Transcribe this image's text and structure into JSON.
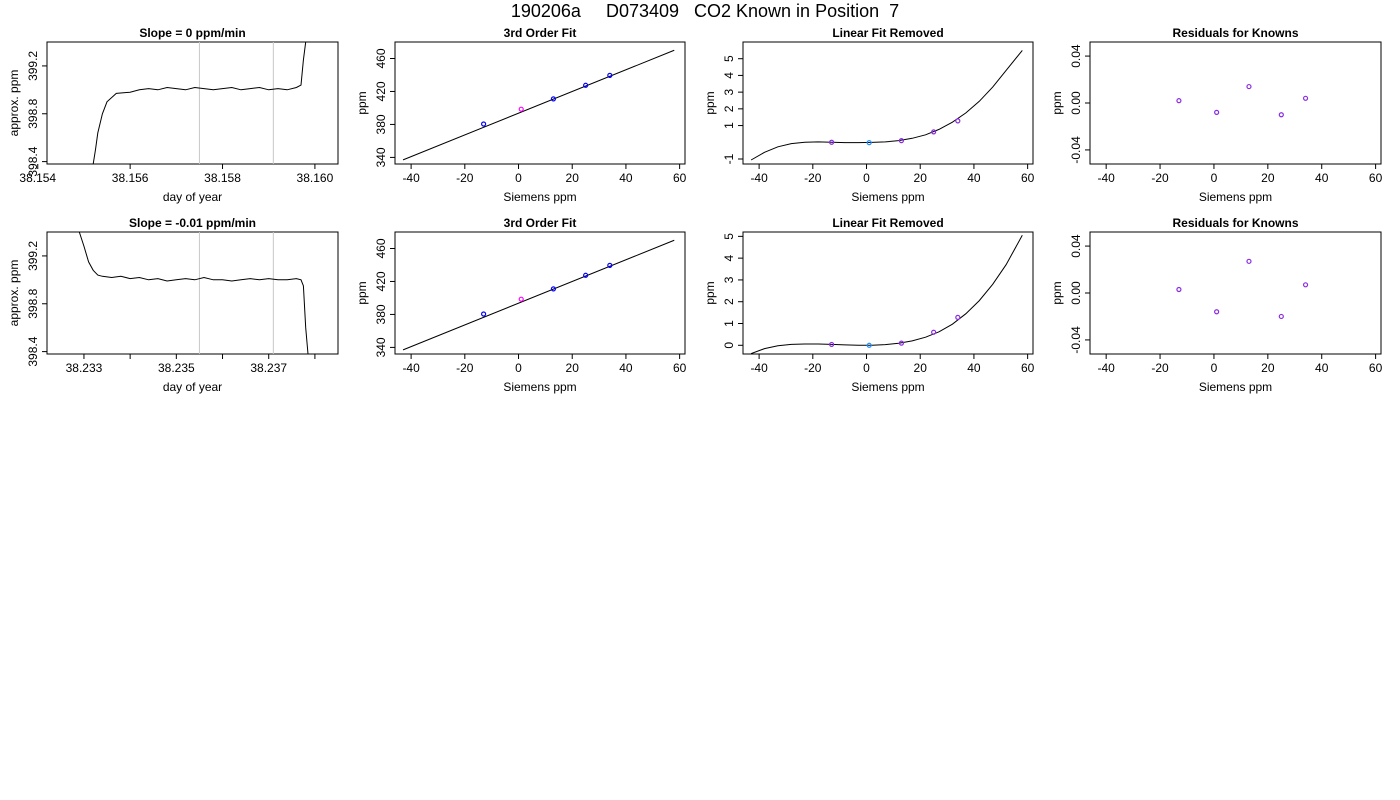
{
  "header": {
    "title": "190206a     D073409   CO2 Known in Position  7"
  },
  "colors": {
    "axis": "#000000",
    "line": "#000000",
    "vline": "#c8c8c8",
    "point_blue": "#0000ff",
    "point_purple": "#8a2be2",
    "point_magenta": "#ff00ff",
    "point_cyan": "#1e90ff"
  },
  "chart_data": [
    {
      "type": "line",
      "title": "Slope =  0  ppm/min",
      "xlabel": "day of year",
      "ylabel": "approx. ppm",
      "xlim": [
        38.1542,
        38.1605
      ],
      "ylim": [
        398.38,
        399.4
      ],
      "xticks": [
        38.154,
        38.156,
        38.158,
        38.16
      ],
      "xtick_labels": [
        "38.154",
        "38.156",
        "38.158",
        "38.160"
      ],
      "yticks": [
        398.4,
        398.8,
        399.2
      ],
      "ytick_labels": [
        "398.4",
        "398.8",
        "399.2"
      ],
      "vlines": [
        38.1575,
        38.1591
      ],
      "x": [
        38.1552,
        38.15525,
        38.1553,
        38.1554,
        38.1555,
        38.1557,
        38.156,
        38.1562,
        38.1564,
        38.1566,
        38.1568,
        38.157,
        38.1572,
        38.1574,
        38.1576,
        38.1578,
        38.158,
        38.1582,
        38.1584,
        38.1586,
        38.1588,
        38.159,
        38.1592,
        38.1594,
        38.1596,
        38.1597,
        38.15975,
        38.1598,
        38.15985
      ],
      "y": [
        398.38,
        398.5,
        398.64,
        398.8,
        398.9,
        398.97,
        398.98,
        399.0,
        399.01,
        399.0,
        399.02,
        399.01,
        399.0,
        399.02,
        399.01,
        399.0,
        399.01,
        399.02,
        399.0,
        399.01,
        399.02,
        399.0,
        399.01,
        399.0,
        399.02,
        399.04,
        399.25,
        399.4,
        399.4
      ]
    },
    {
      "type": "scatter",
      "title": "3rd Order Fit",
      "xlabel": "Siemens ppm",
      "ylabel": "ppm",
      "xlim": [
        -46,
        62
      ],
      "ylim": [
        332,
        480
      ],
      "xticks": [
        -40,
        -20,
        0,
        20,
        40,
        60
      ],
      "xtick_labels": [
        "-40",
        "-20",
        "0",
        "20",
        "40",
        "60"
      ],
      "yticks": [
        340,
        380,
        420,
        460
      ],
      "ytick_labels": [
        "340",
        "380",
        "420",
        "460"
      ],
      "line": {
        "x": [
          -43,
          58
        ],
        "y": [
          337,
          470
        ]
      },
      "points": {
        "x": [
          -13,
          1,
          13,
          25,
          34
        ],
        "y": [
          380.5,
          398.5,
          411,
          427.5,
          439.5
        ],
        "colors": [
          "point_blue",
          "point_magenta",
          "point_blue",
          "point_blue",
          "point_blue"
        ]
      }
    },
    {
      "type": "scatter",
      "title": "Linear Fit Removed",
      "xlabel": "Siemens ppm",
      "ylabel": "ppm",
      "xlim": [
        -46,
        62
      ],
      "ylim": [
        -1.3,
        6.0
      ],
      "xticks": [
        -40,
        -20,
        0,
        20,
        40,
        60
      ],
      "xtick_labels": [
        "-40",
        "-20",
        "0",
        "20",
        "40",
        "60"
      ],
      "yticks": [
        -1,
        1,
        2,
        3,
        4,
        5
      ],
      "ytick_labels": [
        "-1",
        "1",
        "2",
        "3",
        "4",
        "5"
      ],
      "curve": {
        "x": [
          -43,
          -38,
          -33,
          -28,
          -23,
          -18,
          -13,
          -8,
          -3,
          2,
          7,
          12,
          17,
          22,
          27,
          32,
          37,
          42,
          47,
          52,
          58
        ],
        "y": [
          -1.06,
          -0.6,
          -0.27,
          -0.08,
          0.0,
          0.02,
          0.0,
          -0.02,
          -0.02,
          -0.01,
          0.02,
          0.1,
          0.24,
          0.45,
          0.77,
          1.2,
          1.76,
          2.45,
          3.3,
          4.3,
          5.5
        ]
      },
      "points": {
        "x": [
          -13,
          1,
          13,
          25,
          34
        ],
        "y": [
          0.0,
          -0.02,
          0.1,
          0.62,
          1.28
        ],
        "colors": [
          "point_purple",
          "point_cyan",
          "point_purple",
          "point_purple",
          "point_purple"
        ]
      }
    },
    {
      "type": "scatter",
      "title": "Residuals for Knowns",
      "xlabel": "Siemens ppm",
      "ylabel": "ppm",
      "xlim": [
        -46,
        62
      ],
      "ylim": [
        -0.052,
        0.052
      ],
      "xticks": [
        -40,
        -20,
        0,
        20,
        40,
        60
      ],
      "xtick_labels": [
        "-40",
        "-20",
        "0",
        "20",
        "40",
        "60"
      ],
      "yticks": [
        -0.04,
        0.0,
        0.04
      ],
      "ytick_labels": [
        "-0.04",
        "0.00",
        "0.04"
      ],
      "points": {
        "x": [
          -13,
          1,
          13,
          25,
          34
        ],
        "y": [
          0.002,
          -0.008,
          0.014,
          -0.01,
          0.004
        ],
        "colors": [
          "point_purple",
          "point_purple",
          "point_purple",
          "point_purple",
          "point_purple"
        ]
      }
    },
    {
      "type": "line",
      "title": "Slope =  -0.01  ppm/min",
      "xlabel": "day of year",
      "ylabel": "approx. ppm",
      "xlim": [
        38.2322,
        38.2385
      ],
      "ylim": [
        398.38,
        399.4
      ],
      "xticks": [
        38.233,
        38.234,
        38.235,
        38.236,
        38.237,
        38.238
      ],
      "xtick_labels": [
        "38.233",
        "",
        "38.235",
        "",
        "38.237",
        ""
      ],
      "yticks": [
        398.4,
        398.8,
        399.2
      ],
      "ytick_labels": [
        "398.4",
        "398.8",
        "399.2"
      ],
      "vlines": [
        38.2355,
        38.2371
      ],
      "x": [
        38.2329,
        38.233,
        38.2331,
        38.2332,
        38.2333,
        38.2334,
        38.2336,
        38.2338,
        38.234,
        38.2342,
        38.2344,
        38.2346,
        38.2348,
        38.235,
        38.2352,
        38.2354,
        38.2356,
        38.2358,
        38.236,
        38.2362,
        38.2364,
        38.2366,
        38.2368,
        38.237,
        38.2372,
        38.2374,
        38.2376,
        38.2377,
        38.23775,
        38.2378,
        38.23785
      ],
      "y": [
        399.4,
        399.28,
        399.15,
        399.08,
        399.04,
        399.03,
        399.02,
        399.03,
        399.01,
        399.02,
        399.0,
        399.01,
        398.99,
        399.0,
        399.01,
        399.0,
        399.02,
        399.0,
        399.0,
        398.99,
        399.0,
        399.01,
        399.0,
        399.01,
        399.0,
        399.0,
        399.01,
        399.0,
        398.95,
        398.6,
        398.38
      ]
    },
    {
      "type": "scatter",
      "title": "3rd Order Fit",
      "xlabel": "Siemens ppm",
      "ylabel": "ppm",
      "xlim": [
        -46,
        62
      ],
      "ylim": [
        332,
        480
      ],
      "xticks": [
        -40,
        -20,
        0,
        20,
        40,
        60
      ],
      "xtick_labels": [
        "-40",
        "-20",
        "0",
        "20",
        "40",
        "60"
      ],
      "yticks": [
        340,
        380,
        420,
        460
      ],
      "ytick_labels": [
        "340",
        "380",
        "420",
        "460"
      ],
      "line": {
        "x": [
          -43,
          58
        ],
        "y": [
          337,
          470
        ]
      },
      "points": {
        "x": [
          -13,
          1,
          13,
          25,
          34
        ],
        "y": [
          380.5,
          398.5,
          411,
          427.5,
          439.5
        ],
        "colors": [
          "point_blue",
          "point_magenta",
          "point_blue",
          "point_blue",
          "point_blue"
        ]
      }
    },
    {
      "type": "scatter",
      "title": "Linear Fit Removed",
      "xlabel": "Siemens ppm",
      "ylabel": "ppm",
      "xlim": [
        -46,
        62
      ],
      "ylim": [
        -0.4,
        5.2
      ],
      "xticks": [
        -40,
        -20,
        0,
        20,
        40,
        60
      ],
      "xtick_labels": [
        "-40",
        "-20",
        "0",
        "20",
        "40",
        "60"
      ],
      "yticks": [
        0,
        1,
        2,
        3,
        4,
        5
      ],
      "ytick_labels": [
        "0",
        "1",
        "2",
        "3",
        "4",
        "5"
      ],
      "curve": {
        "x": [
          -43,
          -38,
          -33,
          -28,
          -23,
          -18,
          -13,
          -8,
          -3,
          2,
          7,
          12,
          17,
          22,
          27,
          32,
          37,
          42,
          47,
          52,
          58
        ],
        "y": [
          -0.38,
          -0.15,
          -0.02,
          0.04,
          0.06,
          0.06,
          0.04,
          0.02,
          0.0,
          0.0,
          0.03,
          0.09,
          0.2,
          0.37,
          0.62,
          0.97,
          1.45,
          2.05,
          2.8,
          3.7,
          5.05
        ]
      },
      "points": {
        "x": [
          -13,
          1,
          13,
          25,
          34
        ],
        "y": [
          0.04,
          0.0,
          0.1,
          0.6,
          1.28
        ],
        "colors": [
          "point_purple",
          "point_cyan",
          "point_purple",
          "point_purple",
          "point_purple"
        ]
      }
    },
    {
      "type": "scatter",
      "title": "Residuals for Knowns",
      "xlabel": "Siemens ppm",
      "ylabel": "ppm",
      "xlim": [
        -46,
        62
      ],
      "ylim": [
        -0.052,
        0.052
      ],
      "xticks": [
        -40,
        -20,
        0,
        20,
        40,
        60
      ],
      "xtick_labels": [
        "-40",
        "-20",
        "0",
        "20",
        "40",
        "60"
      ],
      "yticks": [
        -0.04,
        0.0,
        0.04
      ],
      "ytick_labels": [
        "-0.04",
        "0.00",
        "0.04"
      ],
      "points": {
        "x": [
          -13,
          1,
          13,
          25,
          34
        ],
        "y": [
          0.003,
          -0.016,
          0.027,
          -0.02,
          0.007
        ],
        "colors": [
          "point_purple",
          "point_purple",
          "point_purple",
          "point_purple",
          "point_purple"
        ]
      }
    }
  ]
}
